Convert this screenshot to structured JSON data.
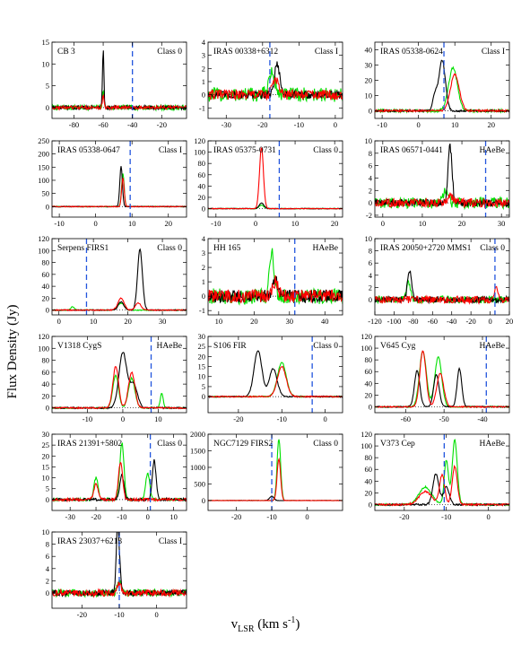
{
  "figure": {
    "ylabel": "Flux Density (Jy)",
    "xlabel_main": "v",
    "xlabel_sub": "LSR",
    "xlabel_unit": " (km s",
    "xlabel_sup": "-1",
    "xlabel_close": ")"
  },
  "colors": {
    "spectrum_1": "#000000",
    "spectrum_2": "#ff0000",
    "spectrum_3": "#00e000",
    "marker": "#2255dd",
    "baseline": "#000000"
  },
  "chart_data": [
    {
      "type": "line",
      "title": "CB 3",
      "class_label": "Class 0",
      "xlim": [
        -95,
        -3
      ],
      "ylim": [
        -2.5,
        15
      ],
      "xticks": [
        -80,
        -60,
        -40,
        -20
      ],
      "yticks": [
        0,
        5,
        10,
        15
      ],
      "vline": -40,
      "peaks": [
        {
          "series": "black",
          "center": -60,
          "height": 13.2,
          "width": 0.5
        },
        {
          "series": "green",
          "center": -60,
          "height": 3.5,
          "width": 0.6
        },
        {
          "series": "red",
          "center": -60,
          "height": 2.5,
          "width": 0.6
        }
      ],
      "noise": {
        "black": 0.45,
        "red": 0.4,
        "green": 0.6
      }
    },
    {
      "type": "line",
      "title": "IRAS 00338+6312",
      "class_label": "Class I",
      "xlim": [
        -35,
        2
      ],
      "ylim": [
        -1.8,
        4
      ],
      "xticks": [
        -30,
        -20,
        -10,
        0
      ],
      "yticks": [
        -1,
        0,
        1,
        2,
        3,
        4
      ],
      "vline": -18,
      "peaks": [
        {
          "series": "black",
          "center": -16,
          "height": 2.4,
          "width": 0.7
        },
        {
          "series": "green",
          "center": -17.5,
          "height": 1.6,
          "width": 0.9
        },
        {
          "series": "red",
          "center": -16.5,
          "height": 1.2,
          "width": 0.8
        }
      ],
      "noise": {
        "black": 0.3,
        "red": 0.4,
        "green": 0.55
      }
    },
    {
      "type": "line",
      "title": "IRAS 05338-0624",
      "class_label": "Class I",
      "xlim": [
        -12,
        25
      ],
      "ylim": [
        -5,
        45
      ],
      "xticks": [
        -10,
        0,
        10,
        20
      ],
      "yticks": [
        0,
        10,
        20,
        30,
        40
      ],
      "vline": 7,
      "peaks": [
        {
          "series": "black",
          "center": 6.5,
          "height": 33,
          "width": 0.9
        },
        {
          "series": "black",
          "center": 4.5,
          "height": 10,
          "width": 0.6
        },
        {
          "series": "green",
          "center": 9.5,
          "height": 28,
          "width": 1.2
        },
        {
          "series": "red",
          "center": 10,
          "height": 24,
          "width": 1.2
        }
      ],
      "noise": {
        "black": 0.6,
        "red": 0.7,
        "green": 0.9
      }
    },
    {
      "type": "line",
      "title": "IRAS 05338-0647",
      "class_label": "Class I",
      "xlim": [
        -12,
        25
      ],
      "ylim": [
        -40,
        250
      ],
      "xticks": [
        -10,
        0,
        10,
        20
      ],
      "yticks": [
        0,
        50,
        100,
        150,
        200,
        250
      ],
      "vline": 9.5,
      "peaks": [
        {
          "series": "black",
          "center": 7,
          "height": 155,
          "width": 0.35
        },
        {
          "series": "green",
          "center": 7.5,
          "height": 125,
          "width": 0.35
        },
        {
          "series": "red",
          "center": 7.5,
          "height": 110,
          "width": 0.35
        }
      ],
      "noise": {
        "black": 1.5,
        "red": 1.5,
        "green": 1.5
      }
    },
    {
      "type": "line",
      "title": "IRAS 05375-0731",
      "class_label": "Class 0",
      "xlim": [
        -12,
        22
      ],
      "ylim": [
        -15,
        120
      ],
      "xticks": [
        -10,
        0,
        10,
        20
      ],
      "yticks": [
        0,
        20,
        40,
        60,
        80,
        100,
        120
      ],
      "vline": 6,
      "peaks": [
        {
          "series": "red",
          "center": 1.5,
          "height": 108,
          "width": 0.5
        },
        {
          "series": "black",
          "center": 1.5,
          "height": 10,
          "width": 0.6
        },
        {
          "series": "green",
          "center": 1.5,
          "height": 6,
          "width": 0.6
        }
      ],
      "noise": {
        "black": 0.6,
        "red": 0.6,
        "green": 0.6
      }
    },
    {
      "type": "line",
      "title": "IRAS 06571-0441",
      "class_label": "HAeBe",
      "xlim": [
        -2,
        32
      ],
      "ylim": [
        -2.3,
        10
      ],
      "xticks": [
        0,
        10,
        20,
        30
      ],
      "yticks": [
        -2,
        0,
        2,
        4,
        6,
        8,
        10
      ],
      "vline": 26,
      "peaks": [
        {
          "series": "black",
          "center": 17,
          "height": 9.2,
          "width": 0.5
        },
        {
          "series": "green",
          "center": 16,
          "height": 2,
          "width": 0.6
        },
        {
          "series": "red",
          "center": 17,
          "height": 1.5,
          "width": 0.6
        }
      ],
      "noise": {
        "black": 0.6,
        "red": 0.7,
        "green": 0.9
      }
    },
    {
      "type": "line",
      "title": "Serpens FIRS1",
      "class_label": "Class 0",
      "xlim": [
        -2,
        37
      ],
      "ylim": [
        -8,
        120
      ],
      "xticks": [
        0,
        10,
        20,
        30
      ],
      "yticks": [
        0,
        20,
        40,
        60,
        80,
        100,
        120
      ],
      "vline": 8,
      "peaks": [
        {
          "series": "black",
          "center": 23.5,
          "height": 102,
          "width": 0.7
        },
        {
          "series": "black",
          "center": 18,
          "height": 14,
          "width": 0.8
        },
        {
          "series": "red",
          "center": 18,
          "height": 20,
          "width": 0.9
        },
        {
          "series": "red",
          "center": 23,
          "height": 12,
          "width": 0.8
        },
        {
          "series": "green",
          "center": 18,
          "height": 12,
          "width": 0.9
        },
        {
          "series": "green",
          "center": 4,
          "height": 6,
          "width": 0.5
        }
      ],
      "noise": {
        "black": 0.8,
        "red": 0.8,
        "green": 0.8
      }
    },
    {
      "type": "line",
      "title": "HH 165",
      "class_label": "HAeBe",
      "xlim": [
        7,
        45
      ],
      "ylim": [
        -1.3,
        4
      ],
      "xticks": [
        10,
        20,
        30,
        40
      ],
      "yticks": [
        -1,
        0,
        1,
        2,
        3,
        4
      ],
      "vline": 31.5,
      "peaks": [
        {
          "series": "green",
          "center": 25,
          "height": 3.2,
          "width": 0.6
        },
        {
          "series": "black",
          "center": 26,
          "height": 1.2,
          "width": 0.8
        },
        {
          "series": "red",
          "center": 26,
          "height": 1.0,
          "width": 0.8
        }
      ],
      "noise": {
        "black": 0.45,
        "red": 0.45,
        "green": 0.55
      }
    },
    {
      "type": "line",
      "title": "IRAS 20050+2720 MMS1",
      "class_label": "Class 0",
      "xlim": [
        -120,
        20
      ],
      "ylim": [
        -2.5,
        10
      ],
      "xticks": [
        -120,
        -100,
        -80,
        -60,
        -40,
        -20,
        0,
        20
      ],
      "yticks": [
        0,
        2,
        4,
        6,
        8,
        10
      ],
      "vline": 5,
      "peaks": [
        {
          "series": "black",
          "center": -84,
          "height": 5,
          "width": 2
        },
        {
          "series": "green",
          "center": -85,
          "height": 3,
          "width": 2
        },
        {
          "series": "red",
          "center": 6,
          "height": 2,
          "width": 2
        }
      ],
      "noise": {
        "black": 0.5,
        "red": 0.6,
        "green": 0.6
      }
    },
    {
      "type": "line",
      "title": "V1318 CygS",
      "class_label": "HAeBe",
      "xlim": [
        -20,
        18
      ],
      "ylim": [
        -8,
        120
      ],
      "xticks": [
        -10,
        0,
        10
      ],
      "yticks": [
        0,
        20,
        40,
        60,
        80,
        100,
        120
      ],
      "vline": 8,
      "peaks": [
        {
          "series": "black",
          "center": 0,
          "height": 93,
          "width": 1.1
        },
        {
          "series": "black",
          "center": 3,
          "height": 40,
          "width": 1.1
        },
        {
          "series": "red",
          "center": -2,
          "height": 70,
          "width": 0.8
        },
        {
          "series": "red",
          "center": 2.5,
          "height": 60,
          "width": 0.9
        },
        {
          "series": "green",
          "center": -2,
          "height": 55,
          "width": 0.8
        },
        {
          "series": "green",
          "center": 2.5,
          "height": 50,
          "width": 0.9
        },
        {
          "series": "green",
          "center": 11,
          "height": 25,
          "width": 0.4
        }
      ],
      "noise": {
        "black": 1.2,
        "red": 1.2,
        "green": 1.2
      }
    },
    {
      "type": "line",
      "title": "S106 FIR",
      "class_label": "Class 0",
      "xlim": [
        -27,
        4
      ],
      "ylim": [
        -8,
        30
      ],
      "xticks": [
        -20,
        -10,
        0
      ],
      "yticks": [
        0,
        5,
        10,
        15,
        20,
        25,
        30
      ],
      "vline": -3,
      "peaks": [
        {
          "series": "black",
          "center": -15.5,
          "height": 23,
          "width": 0.9
        },
        {
          "series": "black",
          "center": -12,
          "height": 14,
          "width": 0.9
        },
        {
          "series": "green",
          "center": -10,
          "height": 17,
          "width": 1
        },
        {
          "series": "red",
          "center": -10,
          "height": 15,
          "width": 1
        }
      ],
      "noise": {
        "black": 0.3,
        "red": 0.3,
        "green": 0.3
      }
    },
    {
      "type": "line",
      "title": "V645 Cyg",
      "class_label": "HAeBe",
      "xlim": [
        -68,
        -33
      ],
      "ylim": [
        -10,
        120
      ],
      "xticks": [
        -60,
        -50,
        -40
      ],
      "yticks": [
        0,
        20,
        40,
        60,
        80,
        100,
        120
      ],
      "vline": -39,
      "peaks": [
        {
          "series": "black",
          "center": -57,
          "height": 62,
          "width": 0.7
        },
        {
          "series": "black",
          "center": -52,
          "height": 55,
          "width": 0.7
        },
        {
          "series": "black",
          "center": -46,
          "height": 65,
          "width": 0.6
        },
        {
          "series": "red",
          "center": -55.5,
          "height": 95,
          "width": 0.8
        },
        {
          "series": "red",
          "center": -51,
          "height": 57,
          "width": 0.9
        },
        {
          "series": "green",
          "center": -55.5,
          "height": 95,
          "width": 0.9
        },
        {
          "series": "green",
          "center": -51.5,
          "height": 85,
          "width": 0.9
        }
      ],
      "noise": {
        "black": 1,
        "red": 1,
        "green": 1
      }
    },
    {
      "type": "line",
      "title": "IRAS 21391+5802",
      "class_label": "Class 0",
      "xlim": [
        -37,
        15
      ],
      "ylim": [
        -5,
        30
      ],
      "xticks": [
        -30,
        -20,
        -10,
        0,
        10
      ],
      "yticks": [
        0,
        5,
        10,
        15,
        20,
        25,
        30
      ],
      "vline": 1,
      "peaks": [
        {
          "series": "black",
          "center": 2.5,
          "height": 18,
          "width": 0.7
        },
        {
          "series": "black",
          "center": -10,
          "height": 11,
          "width": 0.8
        },
        {
          "series": "green",
          "center": -10,
          "height": 26,
          "width": 0.8
        },
        {
          "series": "green",
          "center": 0,
          "height": 12,
          "width": 0.8
        },
        {
          "series": "green",
          "center": -20,
          "height": 10,
          "width": 0.8
        },
        {
          "series": "red",
          "center": -10.5,
          "height": 17,
          "width": 0.8
        },
        {
          "series": "red",
          "center": -20,
          "height": 7,
          "width": 0.8
        }
      ],
      "noise": {
        "black": 0.6,
        "red": 0.6,
        "green": 0.6
      }
    },
    {
      "type": "line",
      "title": "NGC7129 FIRS2",
      "class_label": "Class 0",
      "xlim": [
        -28,
        10
      ],
      "ylim": [
        -300,
        2000
      ],
      "xticks": [
        -20,
        -10,
        0
      ],
      "yticks": [
        0,
        500,
        1000,
        1500,
        2000
      ],
      "vline": -10,
      "peaks": [
        {
          "series": "green",
          "center": -8,
          "height": 1850,
          "width": 0.5
        },
        {
          "series": "red",
          "center": -8,
          "height": 1250,
          "width": 0.5
        },
        {
          "series": "black",
          "center": -10,
          "height": 130,
          "width": 0.6
        }
      ],
      "noise": {
        "black": 5,
        "red": 5,
        "green": 5
      }
    },
    {
      "type": "line",
      "title": "V373 Cep",
      "class_label": "HAeBe",
      "xlim": [
        -27,
        5
      ],
      "ylim": [
        -10,
        120
      ],
      "xticks": [
        -20,
        -10,
        0
      ],
      "yticks": [
        0,
        20,
        40,
        60,
        80,
        100,
        120
      ],
      "vline": -10.5,
      "peaks": [
        {
          "series": "green",
          "center": -8,
          "height": 110,
          "width": 0.6
        },
        {
          "series": "green",
          "center": -10,
          "height": 75,
          "width": 0.5
        },
        {
          "series": "red",
          "center": -8,
          "height": 65,
          "width": 0.6
        },
        {
          "series": "red",
          "center": -11,
          "height": 50,
          "width": 0.6
        },
        {
          "series": "black",
          "center": -12.5,
          "height": 52,
          "width": 0.7
        },
        {
          "series": "black",
          "center": -10,
          "height": 30,
          "width": 0.7
        },
        {
          "series": "green",
          "center": -15,
          "height": 30,
          "width": 1.5
        },
        {
          "series": "red",
          "center": -15,
          "height": 22,
          "width": 1.5
        }
      ],
      "noise": {
        "black": 1.5,
        "red": 1.5,
        "green": 1.5
      }
    },
    {
      "type": "line",
      "title": "IRAS 23037+6213",
      "class_label": "Class I",
      "xlim": [
        -28,
        8
      ],
      "ylim": [
        -2.5,
        10
      ],
      "xticks": [
        -20,
        -10,
        0
      ],
      "yticks": [
        0,
        2,
        4,
        6,
        8,
        10
      ],
      "vline": -10,
      "peaks": [
        {
          "series": "black",
          "center": -10.5,
          "height": 9.2,
          "width": 0.35
        },
        {
          "series": "black",
          "center": -10,
          "height": 4,
          "width": 0.4
        },
        {
          "series": "green",
          "center": -10,
          "height": 2,
          "width": 0.5
        },
        {
          "series": "red",
          "center": -10,
          "height": 1.5,
          "width": 0.5
        }
      ],
      "noise": {
        "black": 0.5,
        "red": 0.55,
        "green": 0.6
      }
    }
  ]
}
